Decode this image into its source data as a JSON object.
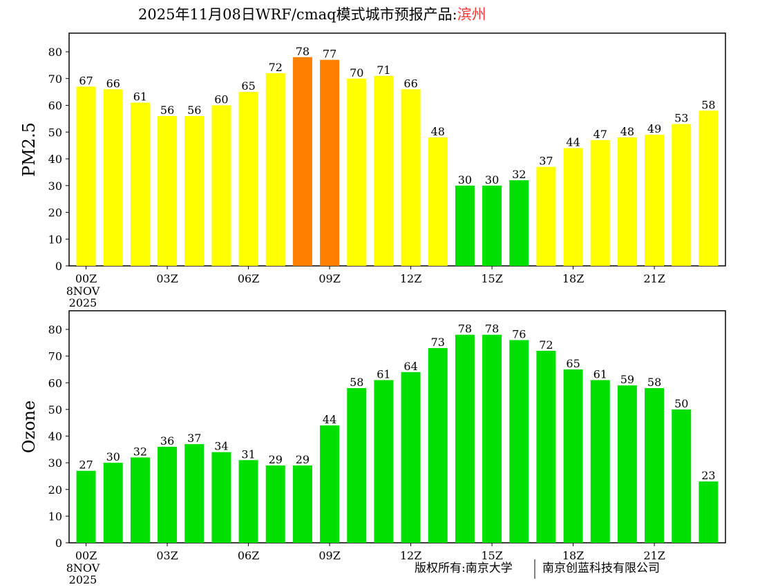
{
  "title": {
    "main": "2025年11月08日WRF/cmaq模式城市预报产品:",
    "city": "滨州",
    "city_color": "#ff3333"
  },
  "footer": {
    "left": "版权所有:南京大学",
    "right": "南京创蓝科技有限公司"
  },
  "chart_data": [
    {
      "type": "bar",
      "ylabel": "PM2.5",
      "ylim": [
        0,
        80
      ],
      "yticks": [
        "0",
        "10",
        "20",
        "30",
        "40",
        "50",
        "60",
        "70",
        "80"
      ],
      "xticks": [
        {
          "index": 0,
          "label": "00Z"
        },
        {
          "index": 3,
          "label": "03Z"
        },
        {
          "index": 6,
          "label": "06Z"
        },
        {
          "index": 9,
          "label": "09Z"
        },
        {
          "index": 12,
          "label": "12Z"
        },
        {
          "index": 15,
          "label": "15Z"
        },
        {
          "index": 18,
          "label": "18Z"
        },
        {
          "index": 21,
          "label": "21Z"
        }
      ],
      "date_label": [
        "8NOV",
        "2025"
      ],
      "values": [
        67,
        66,
        61,
        56,
        56,
        60,
        65,
        72,
        78,
        77,
        70,
        71,
        66,
        48,
        30,
        30,
        32,
        37,
        44,
        47,
        48,
        49,
        53,
        58
      ],
      "colors": [
        "#ffff00",
        "#ffff00",
        "#ffff00",
        "#ffff00",
        "#ffff00",
        "#ffff00",
        "#ffff00",
        "#ffff00",
        "#ff8000",
        "#ff8000",
        "#ffff00",
        "#ffff00",
        "#ffff00",
        "#ffff00",
        "#00e000",
        "#00e000",
        "#00e000",
        "#ffff00",
        "#ffff00",
        "#ffff00",
        "#ffff00",
        "#ffff00",
        "#ffff00",
        "#ffff00"
      ]
    },
    {
      "type": "bar",
      "ylabel": "Ozone",
      "ylim": [
        0,
        80
      ],
      "yticks": [
        "0",
        "10",
        "20",
        "30",
        "40",
        "50",
        "60",
        "70",
        "80"
      ],
      "xticks": [
        {
          "index": 0,
          "label": "00Z"
        },
        {
          "index": 3,
          "label": "03Z"
        },
        {
          "index": 6,
          "label": "06Z"
        },
        {
          "index": 9,
          "label": "09Z"
        },
        {
          "index": 12,
          "label": "12Z"
        },
        {
          "index": 15,
          "label": "15Z"
        },
        {
          "index": 18,
          "label": "18Z"
        },
        {
          "index": 21,
          "label": "21Z"
        }
      ],
      "date_label": [
        "8NOV",
        "2025"
      ],
      "values": [
        27,
        30,
        32,
        36,
        37,
        34,
        31,
        29,
        29,
        44,
        58,
        61,
        64,
        73,
        78,
        78,
        76,
        72,
        65,
        61,
        59,
        58,
        50,
        23
      ],
      "colors": [
        "#00e000"
      ]
    }
  ]
}
